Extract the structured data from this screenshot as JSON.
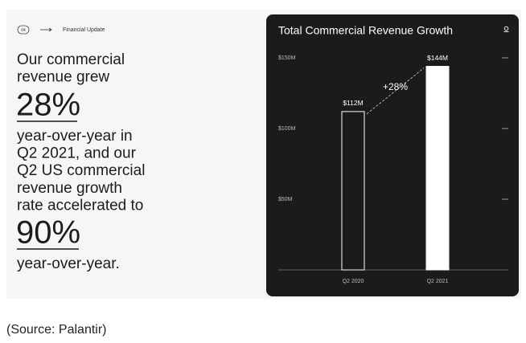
{
  "slide": {
    "page_number": "04",
    "section": "Financial Update",
    "intro_lines": [
      "Our commercial",
      "revenue grew"
    ],
    "highlight_1": "28%",
    "middle_lines": [
      "year-over-year in",
      "Q2 2021, and our",
      "Q2 US commercial",
      "revenue growth",
      "rate accelerated to"
    ],
    "highlight_2": "90%",
    "outro_lines": [
      "year-over-year."
    ]
  },
  "caption": "(Source: Palantir)",
  "chart_data": {
    "type": "bar",
    "title": "Total Commercial Revenue Growth",
    "categories": [
      "Q2 2020",
      "Q2 2021"
    ],
    "values": [
      112,
      144
    ],
    "value_labels": [
      "$112M",
      "$144M"
    ],
    "colors": [
      "#1b1a1c",
      "#ffffff"
    ],
    "stroke": "#ffffff",
    "ylim": [
      0,
      150
    ],
    "yticks": [
      {
        "value": 50,
        "label": "$50M"
      },
      {
        "value": 100,
        "label": "$100M"
      },
      {
        "value": 150,
        "label": "$150M"
      }
    ],
    "annotation": "+28%"
  }
}
